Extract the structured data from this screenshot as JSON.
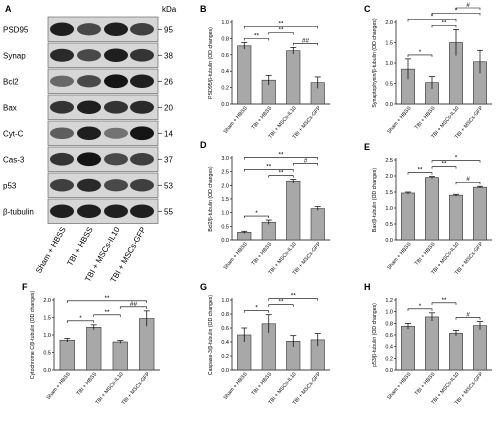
{
  "blot": {
    "panel_label": "A",
    "unit": "kDa",
    "rows": [
      {
        "name": "PSD95",
        "kda": "95"
      },
      {
        "name": "Synap",
        "kda": "38"
      },
      {
        "name": "Bcl2",
        "kda": "26"
      },
      {
        "name": "Bax",
        "kda": "20"
      },
      {
        "name": "Cyt-C",
        "kda": "14"
      },
      {
        "name": "Cas-3",
        "kda": "37"
      },
      {
        "name": "p53",
        "kda": "53"
      },
      {
        "name": "β-tubulin",
        "kda": "55"
      }
    ],
    "lanes": [
      "Sham + HBSS",
      "TBI + HBSS",
      "TBI + MSCs-IL10",
      "TBI + MSCs-GFP"
    ]
  },
  "chart_data": [
    {
      "panel": "B",
      "type": "bar",
      "categories": [
        "Sham + HBSS",
        "TBI + HBSS",
        "TBI + MSCs-IL10",
        "TBI + MSCs-GFP"
      ],
      "values": [
        0.71,
        0.29,
        0.65,
        0.26
      ],
      "errors": [
        0.04,
        0.06,
        0.04,
        0.07
      ],
      "ylabel": "PSD95/β-tubulin (OD changes)",
      "ylim": [
        0,
        1.0
      ],
      "yticks": [
        "0.0",
        "0.2",
        "0.4",
        "0.6",
        "0.8",
        "1.0"
      ],
      "sig": [
        {
          "from": 0,
          "to": 1,
          "label": "**"
        },
        {
          "from": 1,
          "to": 2,
          "label": "**"
        },
        {
          "from": 0,
          "to": 3,
          "label": "**"
        },
        {
          "from": 2,
          "to": 3,
          "label": "##"
        }
      ]
    },
    {
      "panel": "C",
      "type": "bar",
      "categories": [
        "Sham + HBSS",
        "TBI + HBSS",
        "TBI + MSCs-IL10",
        "TBI + MSCs-GFP"
      ],
      "values": [
        0.85,
        0.52,
        1.5,
        1.03
      ],
      "errors": [
        0.25,
        0.15,
        0.32,
        0.28
      ],
      "ylabel": "Synaptophysin/β-tubulin (OD changes)",
      "ylim": [
        0,
        2.0
      ],
      "yticks": [
        "0.0",
        "0.5",
        "1.0",
        "1.5",
        "2.0"
      ],
      "sig": [
        {
          "from": 0,
          "to": 1,
          "label": "*"
        },
        {
          "from": 1,
          "to": 2,
          "label": "**"
        },
        {
          "from": 0,
          "to": 2,
          "label": "*"
        },
        {
          "from": 1,
          "to": 3,
          "label": "*"
        },
        {
          "from": 2,
          "to": 3,
          "label": "#"
        }
      ]
    },
    {
      "panel": "D",
      "type": "bar",
      "categories": [
        "Sham + HBSS",
        "TBI + HBSS",
        "TBI + MSCs-IL10",
        "TBI + MSCs-GFP"
      ],
      "values": [
        0.28,
        0.65,
        2.15,
        1.15
      ],
      "errors": [
        0.04,
        0.08,
        0.06,
        0.07
      ],
      "ylabel": "Bcl2/β-tubulin (OD changes)",
      "ylim": [
        0,
        3.0
      ],
      "yticks": [
        "0.0",
        "0.5",
        "1.0",
        "1.5",
        "2.0",
        "2.5",
        "3.0"
      ],
      "sig": [
        {
          "from": 0,
          "to": 1,
          "label": "*"
        },
        {
          "from": 1,
          "to": 2,
          "label": "**"
        },
        {
          "from": 0,
          "to": 2,
          "label": "**"
        },
        {
          "from": 2,
          "to": 3,
          "label": "#"
        },
        {
          "from": 0,
          "to": 3,
          "label": "**"
        }
      ]
    },
    {
      "panel": "E",
      "type": "bar",
      "categories": [
        "Sham + HBSS",
        "TBI + HBSS",
        "TBI + MSCs-IL10",
        "TBI + MSCs-GFP"
      ],
      "values": [
        1.47,
        1.95,
        1.4,
        1.65
      ],
      "errors": [
        0.03,
        0.03,
        0.03,
        0.03
      ],
      "ylabel": "Bax/β-tubulin (OD changes)",
      "ylim": [
        0,
        2.5
      ],
      "yticks": [
        "0.0",
        "0.5",
        "1.0",
        "1.5",
        "2.0",
        "2.5"
      ],
      "sig": [
        {
          "from": 0,
          "to": 1,
          "label": "**"
        },
        {
          "from": 1,
          "to": 2,
          "label": "**"
        },
        {
          "from": 2,
          "to": 3,
          "label": "#"
        },
        {
          "from": 1,
          "to": 3,
          "label": "*"
        }
      ]
    },
    {
      "panel": "F",
      "type": "bar",
      "categories": [
        "Sham + HBSS",
        "TBI + HBSS",
        "TBI + MSCs-IL10",
        "TBI + MSCs-GFP"
      ],
      "values": [
        0.85,
        1.22,
        0.8,
        1.47
      ],
      "errors": [
        0.05,
        0.07,
        0.04,
        0.22
      ],
      "ylabel": "Cytochrome C/β-tubulin (OD changes)",
      "ylim": [
        0,
        2.0
      ],
      "yticks": [
        "0.0",
        "0.5",
        "1.0",
        "1.5",
        "2.0"
      ],
      "sig": [
        {
          "from": 0,
          "to": 1,
          "label": "*"
        },
        {
          "from": 1,
          "to": 2,
          "label": "**"
        },
        {
          "from": 2,
          "to": 3,
          "label": "##"
        },
        {
          "from": 0,
          "to": 3,
          "label": "**"
        }
      ]
    },
    {
      "panel": "G",
      "type": "bar",
      "categories": [
        "Sham + HBSS",
        "TBI + HBSS",
        "TBI + MSCs-IL10",
        "TBI + MSCs-GFP"
      ],
      "values": [
        0.5,
        0.66,
        0.41,
        0.43
      ],
      "errors": [
        0.1,
        0.13,
        0.08,
        0.09
      ],
      "ylabel": "Caspase-3/β-tubulin (OD changes)",
      "ylim": [
        0,
        1.0
      ],
      "yticks": [
        "0.0",
        "0.2",
        "0.4",
        "0.6",
        "0.8",
        "1.0"
      ],
      "sig": [
        {
          "from": 0,
          "to": 1,
          "label": "*"
        },
        {
          "from": 1,
          "to": 2,
          "label": "**"
        },
        {
          "from": 1,
          "to": 3,
          "label": "**"
        }
      ]
    },
    {
      "panel": "H",
      "type": "bar",
      "categories": [
        "Sham + HBSS",
        "TBI + HBSS",
        "TBI + MSCs-IL10",
        "TBI + MSCs-GFP"
      ],
      "values": [
        0.75,
        0.91,
        0.63,
        0.76
      ],
      "errors": [
        0.05,
        0.07,
        0.05,
        0.07
      ],
      "ylabel": "p53/β-tubulin (OD changes)",
      "ylim": [
        0,
        1.2
      ],
      "yticks": [
        "0.0",
        "0.2",
        "0.4",
        "0.6",
        "0.8",
        "1.0",
        "1.2"
      ],
      "sig": [
        {
          "from": 0,
          "to": 1,
          "label": "*"
        },
        {
          "from": 1,
          "to": 2,
          "label": "**"
        },
        {
          "from": 2,
          "to": 3,
          "label": "#"
        }
      ]
    }
  ]
}
